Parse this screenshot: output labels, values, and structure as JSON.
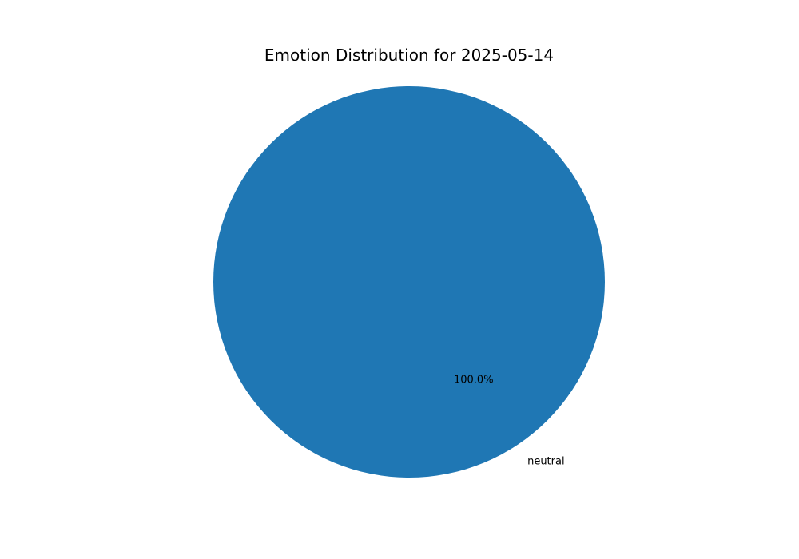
{
  "chart_data": {
    "type": "pie",
    "title": "Emotion Distribution for 2025-05-14",
    "categories": [
      "neutral"
    ],
    "values": [
      100
    ],
    "percent_labels": [
      "100.0%"
    ],
    "colors": [
      "#1f77b4"
    ],
    "legend": "none"
  }
}
